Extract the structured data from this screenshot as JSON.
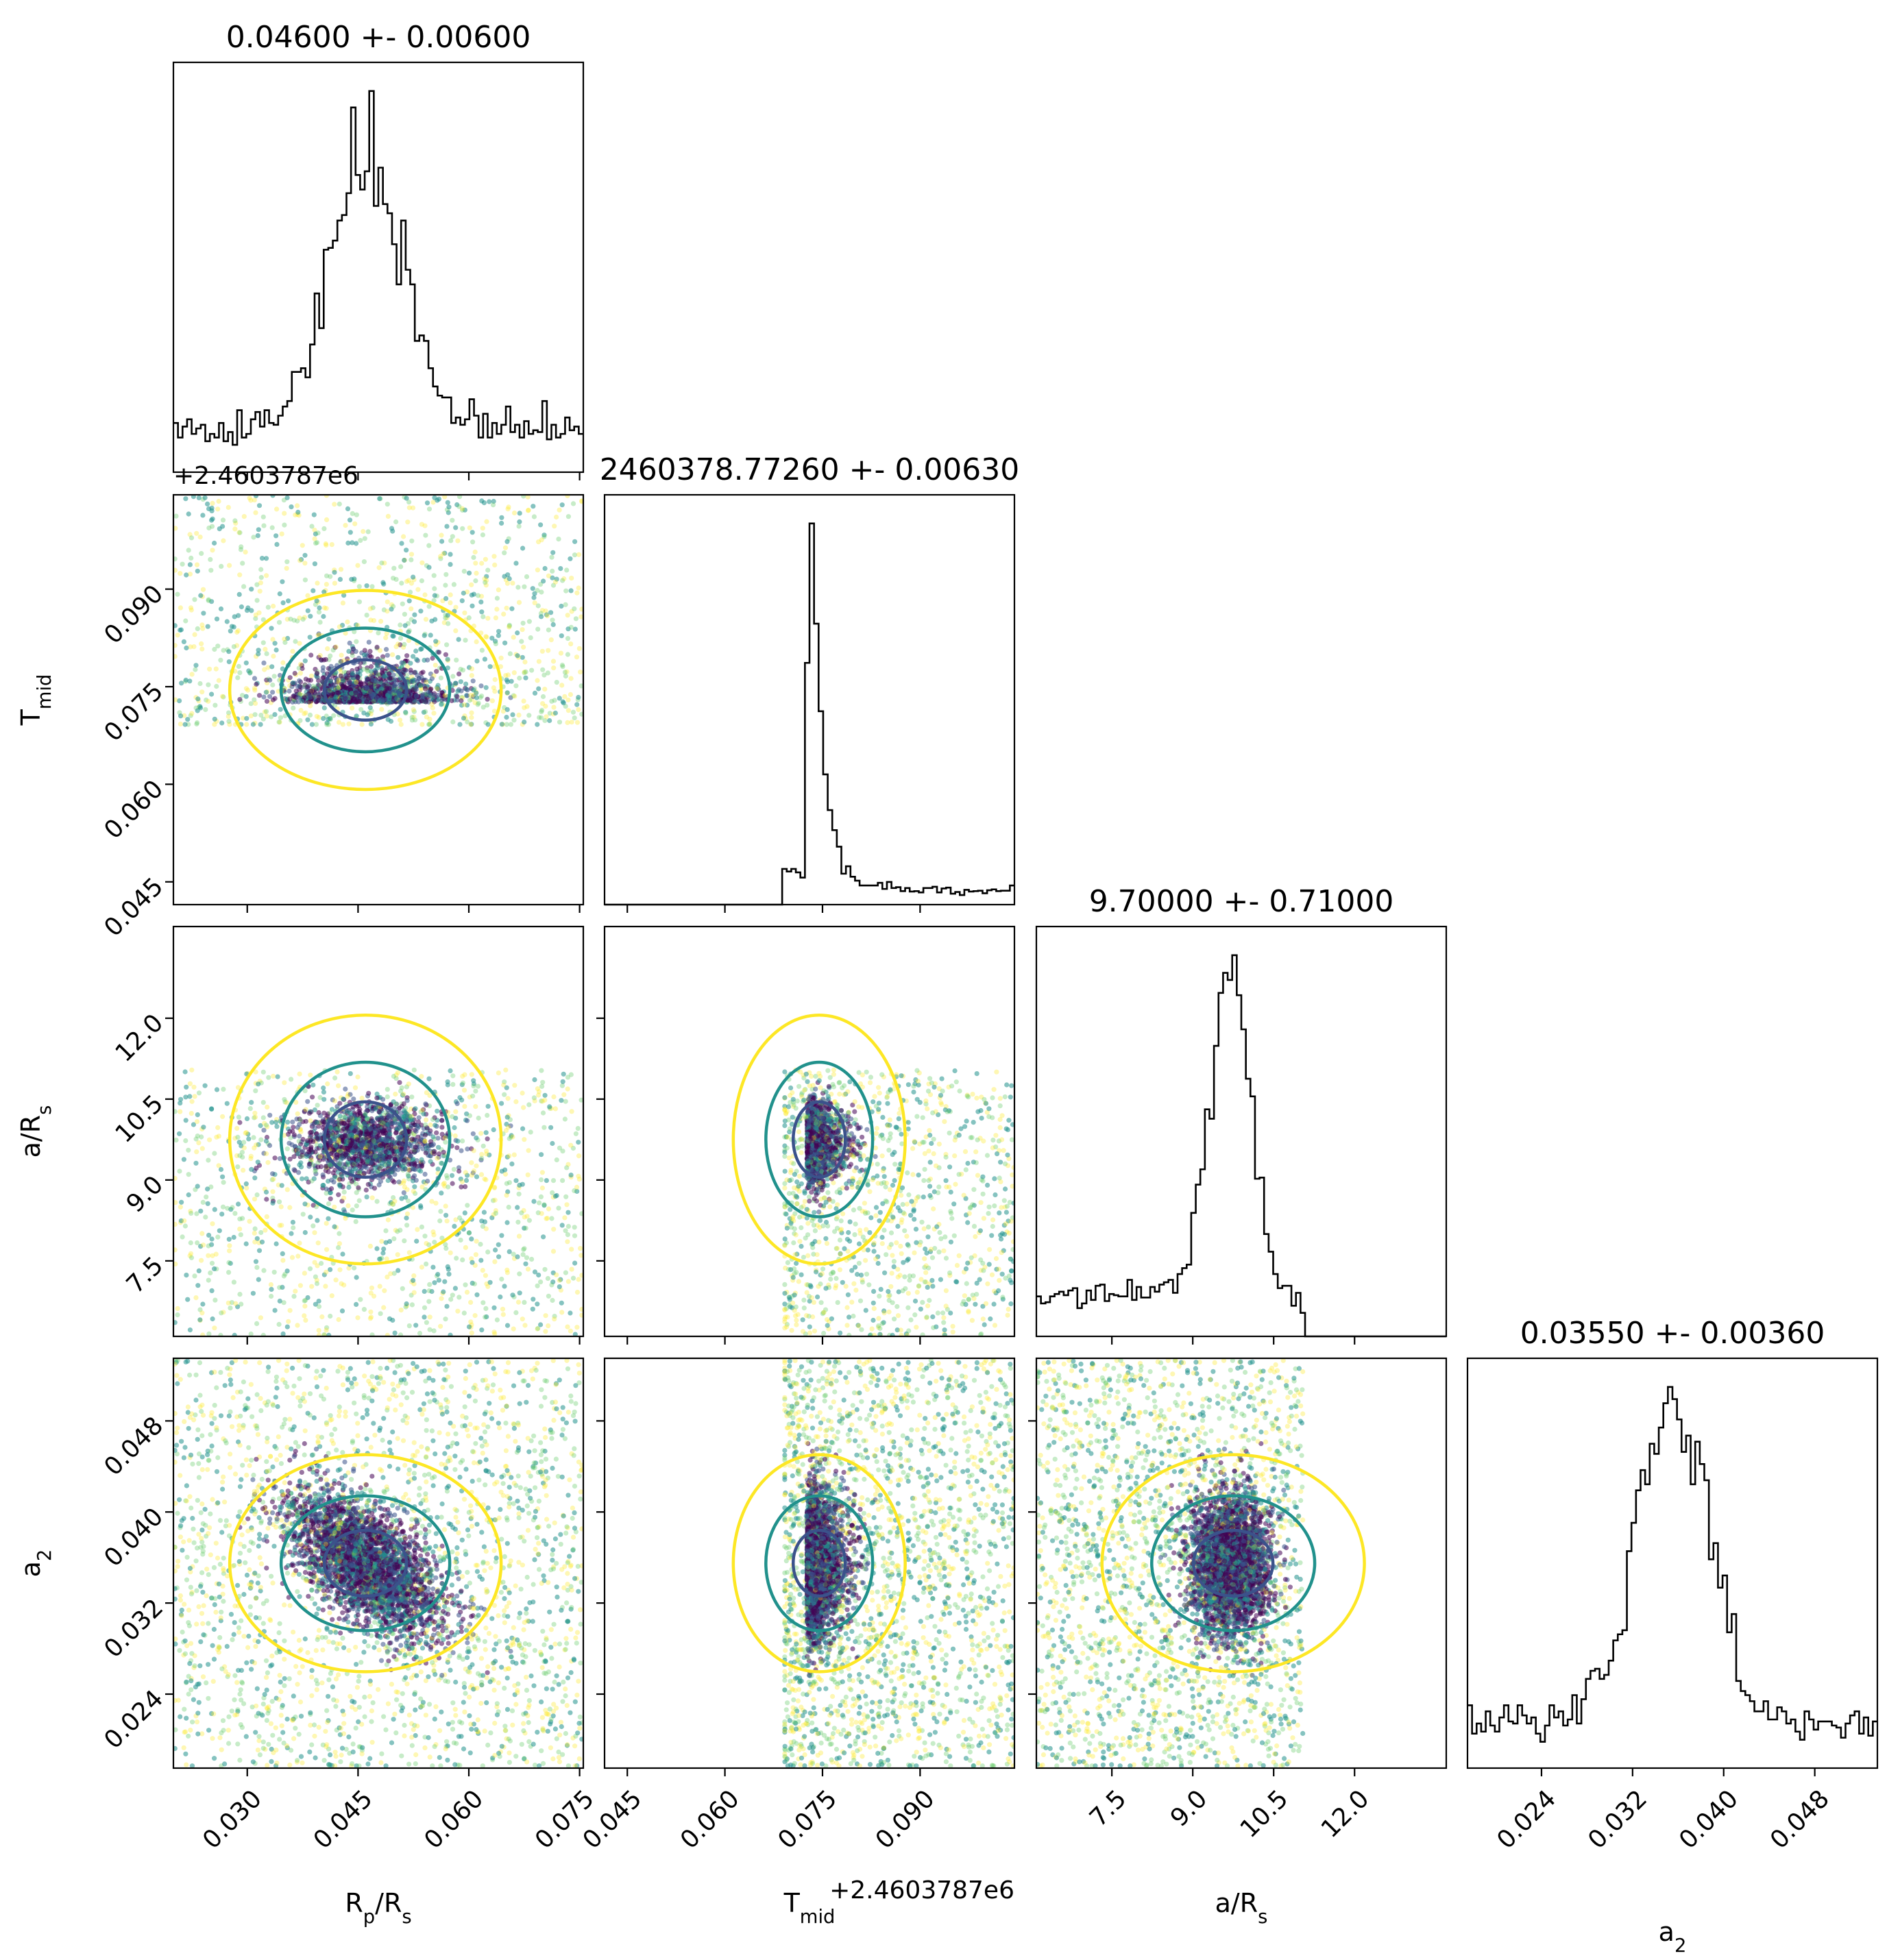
{
  "chart_data": {
    "type": "corner",
    "parameters": [
      {
        "label": "R_p/R_s",
        "display": "Rp/Rs",
        "range": [
          0.02,
          0.0755
        ],
        "ticks": [
          "0.030",
          "0.045",
          "0.060",
          "0.075"
        ],
        "title": "0.04600 +- 0.00600"
      },
      {
        "label": "T_mid",
        "display": "Tmid",
        "range": [
          0.0415,
          0.1045
        ],
        "offset_label": "+2.4603787e6",
        "ticks": [
          "0.045",
          "0.060",
          "0.075",
          "0.090"
        ],
        "title": "2460378.77260 +- 0.00630"
      },
      {
        "label": "a/R_s",
        "display": "a/Rs",
        "range": [
          6.1,
          13.7
        ],
        "ticks": [
          "7.5",
          "9.0",
          "10.5",
          "12.0"
        ],
        "title": "9.70000 +- 0.71000"
      },
      {
        "label": "a_2",
        "display": "a2",
        "range": [
          0.0175,
          0.0535
        ],
        "ticks": [
          "0.024",
          "0.032",
          "0.040",
          "0.048"
        ],
        "title": "0.03550 +- 0.00360"
      }
    ],
    "marginal_peaks": {
      "R_p/R_s": 0.046,
      "T_mid": 0.0726,
      "a/R_s": 9.7,
      "a_2": 0.0355
    },
    "prior_bounds": {
      "T_mid": [
        0.069,
        0.1045
      ],
      "a/R_s": [
        6.1,
        11.05
      ]
    },
    "colormap": [
      "#440154",
      "#3b528b",
      "#21918c",
      "#5ec962",
      "#fde725"
    ],
    "contour_colors": [
      "#3b528b",
      "#21918c",
      "#fde725"
    ],
    "hist_color": "#000000"
  }
}
